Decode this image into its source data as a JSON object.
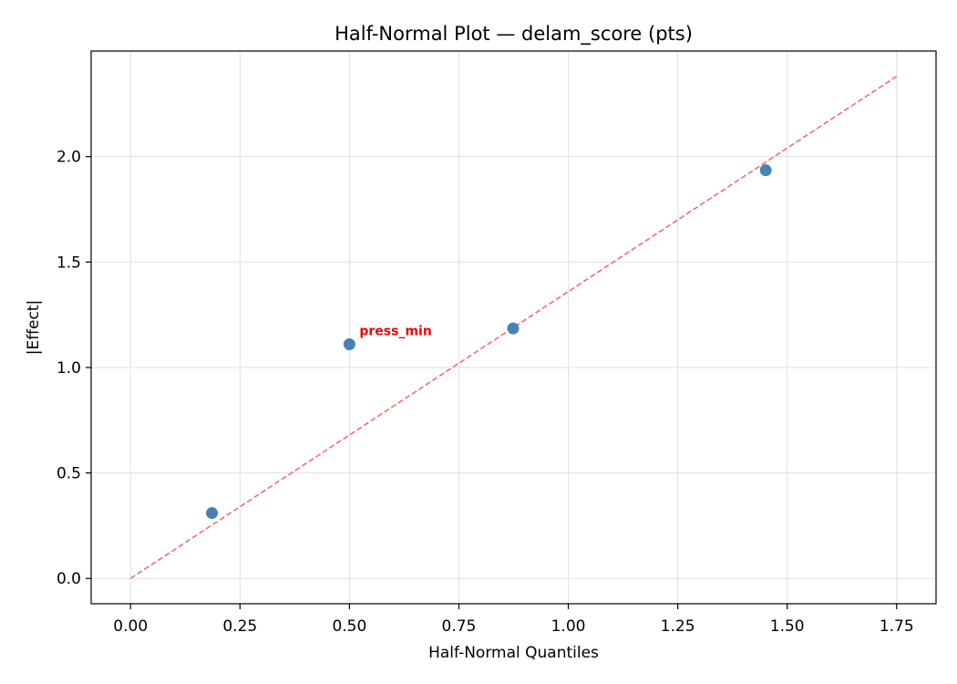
{
  "chart_data": {
    "type": "scatter",
    "title": "Half-Normal Plot — delam_score (pts)",
    "xlabel": "Half-Normal Quantiles",
    "ylabel": "|Effect|",
    "xlim": [
      -0.09,
      1.84
    ],
    "ylim": [
      -0.12,
      2.5
    ],
    "xticks": [
      0.0,
      0.25,
      0.5,
      0.75,
      1.0,
      1.25,
      1.5,
      1.75
    ],
    "xtick_labels": [
      "0.00",
      "0.25",
      "0.50",
      "0.75",
      "1.00",
      "1.25",
      "1.50",
      "1.75"
    ],
    "yticks": [
      0.0,
      0.5,
      1.0,
      1.5,
      2.0
    ],
    "ytick_labels": [
      "0.0",
      "0.5",
      "1.0",
      "1.5",
      "2.0"
    ],
    "grid": true,
    "points": [
      {
        "x": 0.186,
        "y": 0.31
      },
      {
        "x": 0.5,
        "y": 1.11,
        "label": "press_min"
      },
      {
        "x": 0.874,
        "y": 1.185
      },
      {
        "x": 1.451,
        "y": 1.935
      }
    ],
    "reference_line": {
      "x": [
        0.0,
        1.75
      ],
      "y": [
        0.0,
        2.38
      ],
      "style": "dashed"
    },
    "colors": {
      "points": "#4682b4",
      "reference_line": "#f46b63",
      "annotation": "#ee0000",
      "grid": "#e0e0e0"
    }
  }
}
